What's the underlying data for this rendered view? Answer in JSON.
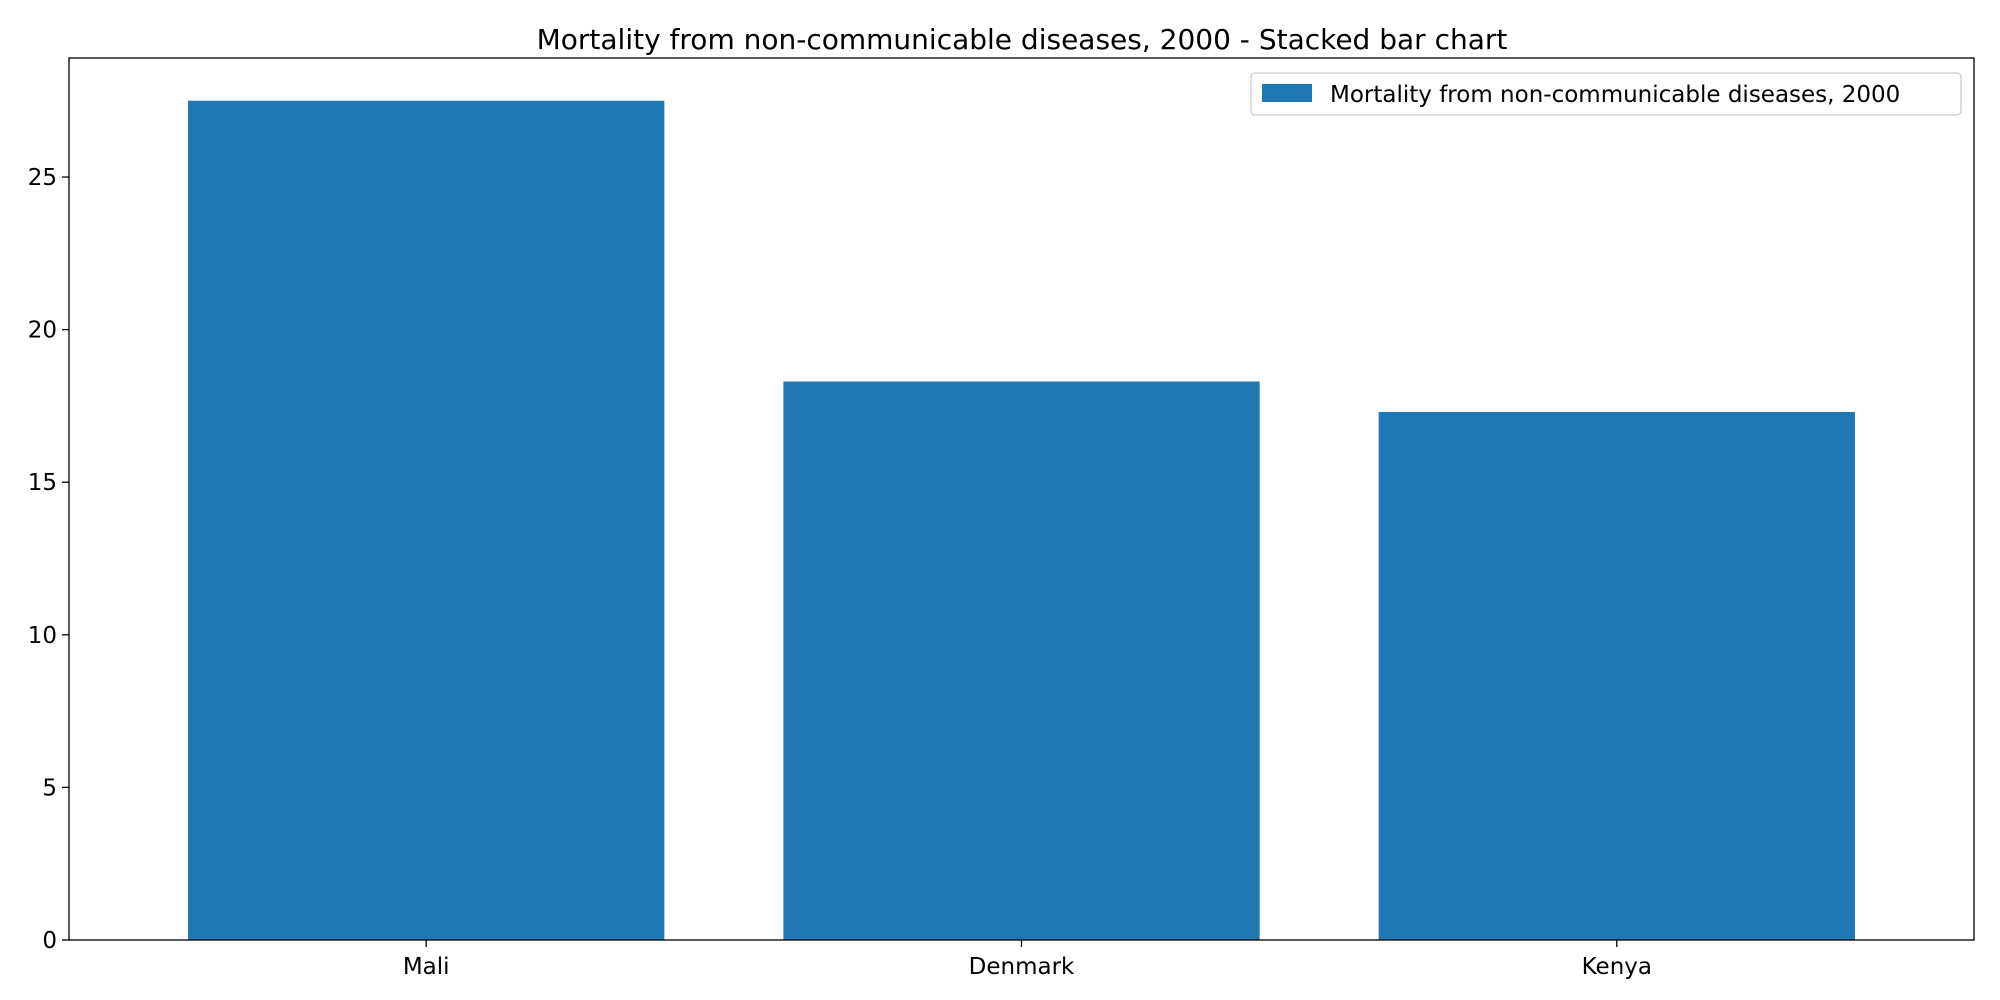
{
  "chart_data": {
    "type": "bar",
    "title": "Mortality from non-communicable diseases, 2000 - Stacked bar chart",
    "xlabel": "",
    "ylabel": "",
    "categories": [
      "Mali",
      "Denmark",
      "Kenya"
    ],
    "series": [
      {
        "name": "Mortality from non-communicable diseases, 2000",
        "values": [
          27.5,
          18.3,
          17.3
        ],
        "color": "#1f77b4"
      }
    ],
    "ylim": [
      0,
      28.9
    ],
    "yticks": [
      0,
      5,
      10,
      15,
      20,
      25
    ],
    "grid": false,
    "legend_position": "top-right"
  }
}
